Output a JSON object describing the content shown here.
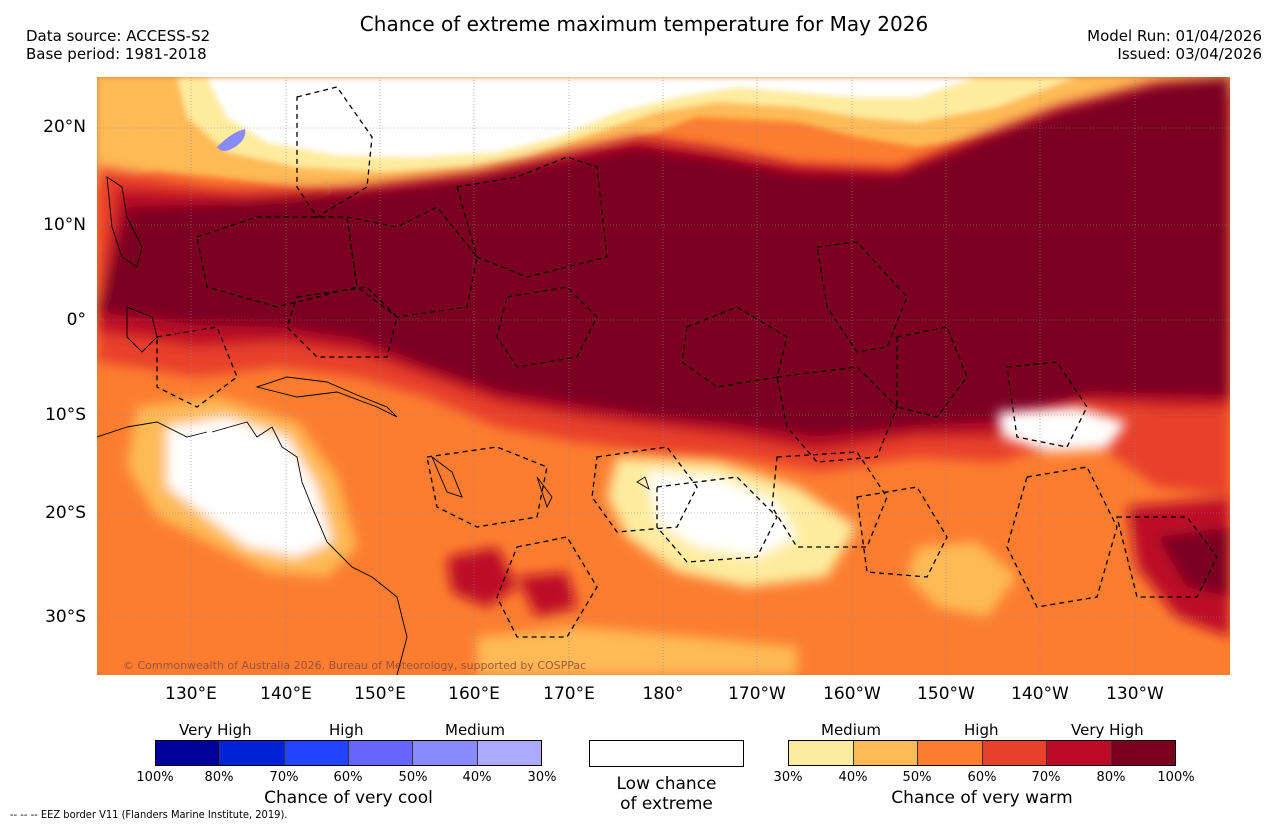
{
  "header": {
    "title": "Chance of extreme maximum temperature for May 2026",
    "data_source": "Data source: ACCESS-S2",
    "base_period": "Base period: 1981-2018",
    "model_run": "Model Run: 01/04/2026",
    "issued": "Issued: 03/04/2026"
  },
  "map": {
    "lat_labels": [
      "20°N",
      "10°N",
      "0°",
      "10°S",
      "20°S",
      "30°S"
    ],
    "lon_labels": [
      "130°E",
      "140°E",
      "150°E",
      "160°E",
      "170°E",
      "180°",
      "170°W",
      "160°W",
      "150°W",
      "140°W",
      "130°W"
    ],
    "copyright": "© Commonwealth of Australia 2026, Bureau of Meteorology, supported by COSPPac",
    "colors": {
      "very_high_warm": "#7b0020",
      "high_80": "#bd0a26",
      "high_60": "#e8412b",
      "medium_50": "#fc7d30",
      "medium_40": "#feba56",
      "low_30": "#feec9e",
      "low_chance": "#ffffff",
      "cool_30": "#aaaaff"
    }
  },
  "legend": {
    "cool": {
      "very_high": "Very High",
      "high": "High",
      "medium": "Medium",
      "ticks": [
        "100%",
        "80%",
        "70%",
        "60%",
        "50%",
        "40%",
        "30%"
      ],
      "colors": [
        "#00009a",
        "#0022d6",
        "#2244ff",
        "#6666ff",
        "#8a8aff",
        "#aaaaff"
      ],
      "caption": "Chance of very cool"
    },
    "neutral": {
      "line1": "Low chance",
      "line2": "of extreme"
    },
    "warm": {
      "medium": "Medium",
      "high": "High",
      "very_high": "Very High",
      "ticks": [
        "30%",
        "40%",
        "50%",
        "60%",
        "70%",
        "80%",
        "100%"
      ],
      "colors": [
        "#feec9e",
        "#feba56",
        "#fc7d30",
        "#e8412b",
        "#bd0a26",
        "#7b0020"
      ],
      "caption": "Chance of very warm"
    }
  },
  "footnote": "--  --  -- EEZ border V11 (Flanders Marine Institute, 2019)."
}
